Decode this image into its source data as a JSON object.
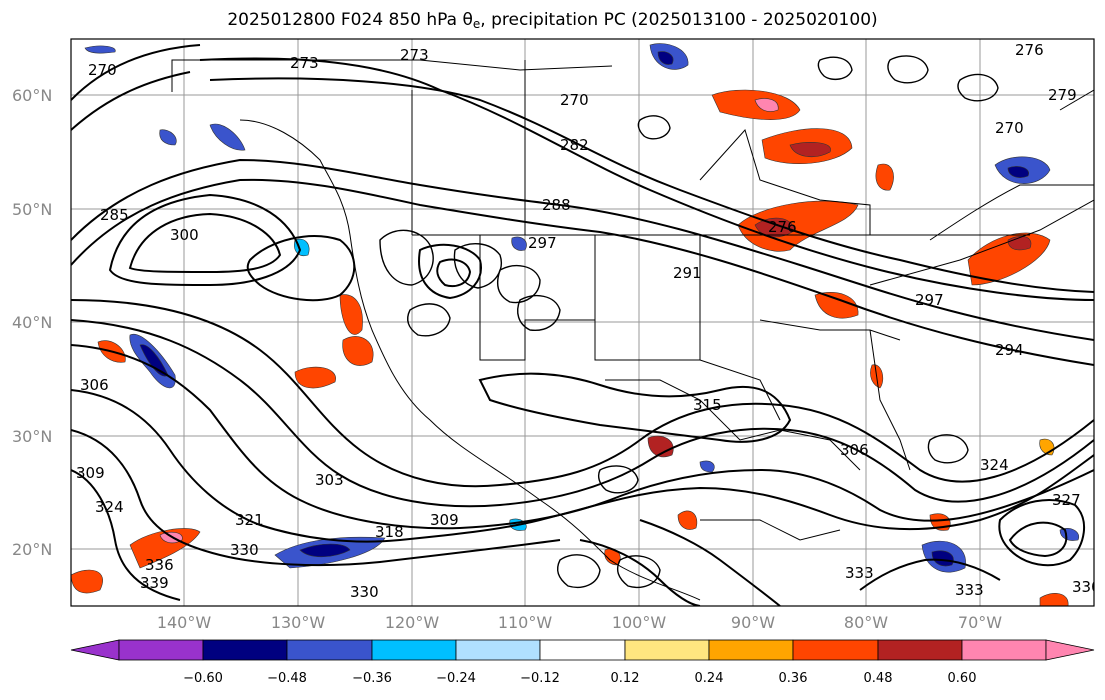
{
  "title": {
    "prefix": "2025012800 F024 850 hPa ",
    "theta": "θ",
    "theta_sub": "e",
    "suffix": ", precipitation PC (2025013100 - 2025020100)"
  },
  "map": {
    "projection": "PlateCarree",
    "lon_range": [
      -150,
      -60
    ],
    "lat_range": [
      15,
      65
    ],
    "lat_labels": [
      "20°N",
      "30°N",
      "40°N",
      "50°N",
      "60°N"
    ],
    "lon_labels": [
      "140°W",
      "130°W",
      "120°W",
      "110°W",
      "100°W",
      "90°W",
      "80°W",
      "70°W"
    ],
    "gridlines": true
  },
  "contours": {
    "variable": "850 hPa theta-e",
    "color": "#000000",
    "labels": [
      "270",
      "273",
      "273",
      "270",
      "282",
      "288",
      "291",
      "297",
      "300",
      "285",
      "276",
      "279",
      "276",
      "270",
      "294",
      "297",
      "315",
      "306",
      "324",
      "327",
      "303",
      "309",
      "321",
      "318",
      "330",
      "336",
      "339",
      "330",
      "333",
      "306",
      "309",
      "324",
      "333",
      "330"
    ]
  },
  "precip_pc_shading": {
    "colorbar": {
      "ticks": [
        "−0.60",
        "−0.48",
        "−0.36",
        "−0.24",
        "−0.12",
        "0.12",
        "0.24",
        "0.36",
        "0.48",
        "0.60"
      ],
      "colors": [
        "#9932cc",
        "#000080",
        "#3a54cc",
        "#00bfff",
        "#b0e0ff",
        "#ffffff",
        "#ffe680",
        "#ffa500",
        "#ff4500",
        "#b22222",
        "#ff85b0"
      ],
      "extend": "both"
    }
  }
}
